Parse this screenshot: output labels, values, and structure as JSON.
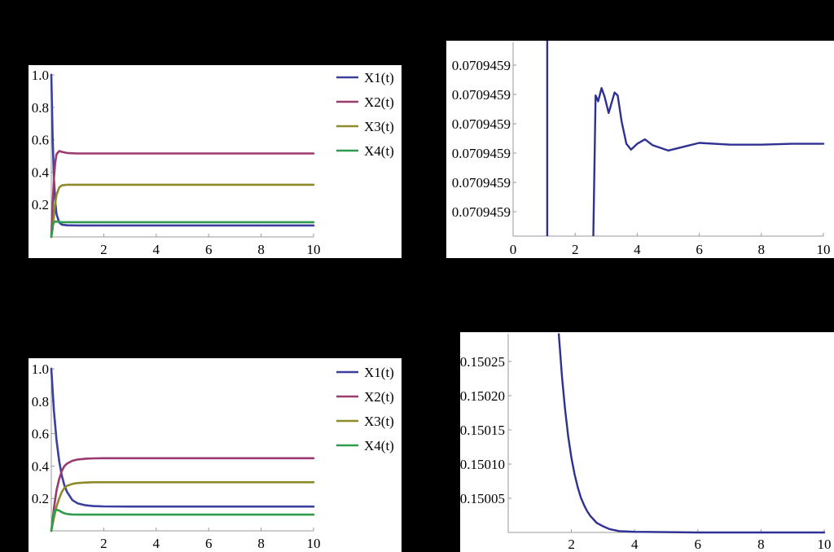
{
  "chart_data": [
    {
      "type": "line",
      "x_ticks": [
        "2",
        "4",
        "6",
        "8",
        "10"
      ],
      "y_ticks": [
        "1.0",
        "0.8",
        "0.6",
        "0.4",
        "0.2"
      ],
      "xlim": [
        0,
        10
      ],
      "ylim": [
        0,
        1.0
      ],
      "grid": false,
      "legend_position": "right",
      "series": [
        {
          "name": "X1(t)",
          "color": "#3b3f9e",
          "x": [
            0,
            0.05,
            0.1,
            0.15,
            0.2,
            0.3,
            0.4,
            0.6,
            1,
            2,
            4,
            6,
            8,
            10
          ],
          "y": [
            1.0,
            0.62,
            0.36,
            0.22,
            0.14,
            0.09,
            0.076,
            0.072,
            0.071,
            0.071,
            0.071,
            0.071,
            0.071,
            0.071
          ]
        },
        {
          "name": "X2(t)",
          "color": "#9b3a6e",
          "x": [
            0,
            0.05,
            0.1,
            0.15,
            0.2,
            0.3,
            0.4,
            0.6,
            1,
            2,
            4,
            6,
            8,
            10
          ],
          "y": [
            0,
            0.2,
            0.36,
            0.46,
            0.51,
            0.53,
            0.525,
            0.518,
            0.515,
            0.515,
            0.515,
            0.515,
            0.515,
            0.515
          ]
        },
        {
          "name": "X3(t)",
          "color": "#8e8a2a",
          "x": [
            0,
            0.05,
            0.1,
            0.15,
            0.2,
            0.3,
            0.4,
            0.6,
            1,
            2,
            4,
            6,
            8,
            10
          ],
          "y": [
            0,
            0.05,
            0.13,
            0.21,
            0.26,
            0.305,
            0.318,
            0.322,
            0.322,
            0.322,
            0.322,
            0.322,
            0.322,
            0.322
          ]
        },
        {
          "name": "X4(t)",
          "color": "#2e9c4e",
          "x": [
            0,
            0.05,
            0.1,
            0.15,
            0.2,
            0.3,
            0.4,
            0.6,
            1,
            2,
            4,
            6,
            8,
            10
          ],
          "y": [
            0,
            0.07,
            0.09,
            0.095,
            0.095,
            0.092,
            0.091,
            0.091,
            0.091,
            0.091,
            0.091,
            0.091,
            0.091,
            0.091
          ]
        }
      ]
    },
    {
      "type": "line",
      "x_ticks": [
        "0",
        "2",
        "4",
        "6",
        "8",
        "10"
      ],
      "y_ticks": [
        "0.0709459",
        "0.0709459",
        "0.0709459",
        "0.0709459",
        "0.0709459",
        "0.0709459"
      ],
      "xlim": [
        0,
        10
      ],
      "grid": false,
      "series": [
        {
          "color": "#2e3192",
          "x": [
            1.1,
            1.1,
            null,
            2.57,
            2.66,
            2.74,
            2.85,
            2.95,
            3.08,
            3.27,
            3.37,
            3.5,
            3.65,
            3.8,
            4.0,
            4.25,
            4.5,
            5.0,
            5.5,
            6.0,
            7.0,
            8.0,
            9.0,
            10.0
          ],
          "y": [
            7.2,
            -1.0,
            null,
            -1.0,
            4.8,
            4.6,
            5.05,
            4.75,
            4.2,
            4.9,
            4.8,
            3.9,
            3.15,
            2.95,
            3.15,
            3.3,
            3.1,
            2.92,
            3.05,
            3.18,
            3.12,
            3.12,
            3.15,
            3.15
          ]
        }
      ]
    },
    {
      "type": "line",
      "x_ticks": [
        "2",
        "4",
        "6",
        "8",
        "10"
      ],
      "y_ticks": [
        "1.0",
        "0.8",
        "0.6",
        "0.4",
        "0.2"
      ],
      "xlim": [
        0,
        10
      ],
      "ylim": [
        0,
        1.0
      ],
      "grid": false,
      "legend_position": "right",
      "series": [
        {
          "name": "X1(t)",
          "color": "#3b3f9e",
          "x": [
            0,
            0.1,
            0.2,
            0.3,
            0.4,
            0.5,
            0.6,
            0.8,
            1,
            1.3,
            1.6,
            2,
            3,
            5,
            10
          ],
          "y": [
            1.0,
            0.74,
            0.56,
            0.43,
            0.34,
            0.28,
            0.24,
            0.19,
            0.17,
            0.158,
            0.153,
            0.151,
            0.15,
            0.15,
            0.15
          ]
        },
        {
          "name": "X2(t)",
          "color": "#9b3a6e",
          "x": [
            0,
            0.1,
            0.2,
            0.3,
            0.4,
            0.5,
            0.6,
            0.8,
            1,
            1.3,
            1.6,
            2,
            3,
            5,
            10
          ],
          "y": [
            0,
            0.14,
            0.25,
            0.32,
            0.37,
            0.4,
            0.415,
            0.432,
            0.44,
            0.445,
            0.447,
            0.448,
            0.448,
            0.448,
            0.448
          ]
        },
        {
          "name": "X3(t)",
          "color": "#8e8a2a",
          "x": [
            0,
            0.1,
            0.2,
            0.3,
            0.4,
            0.5,
            0.6,
            0.8,
            1,
            1.3,
            1.6,
            2,
            3,
            5,
            10
          ],
          "y": [
            0,
            0.08,
            0.15,
            0.2,
            0.24,
            0.265,
            0.278,
            0.29,
            0.295,
            0.298,
            0.3,
            0.3,
            0.3,
            0.3,
            0.3
          ]
        },
        {
          "name": "X4(t)",
          "color": "#2e9c4e",
          "x": [
            0,
            0.1,
            0.2,
            0.3,
            0.4,
            0.5,
            0.6,
            0.8,
            1,
            1.3,
            1.6,
            2,
            3,
            5,
            10
          ],
          "y": [
            0,
            0.12,
            0.13,
            0.125,
            0.115,
            0.108,
            0.104,
            0.101,
            0.1,
            0.1,
            0.1,
            0.1,
            0.1,
            0.1,
            0.1
          ]
        }
      ]
    },
    {
      "type": "line",
      "x_ticks": [
        "2",
        "4",
        "6",
        "8",
        "10"
      ],
      "y_ticks": [
        "0.15025",
        "0.15020",
        "0.15015",
        "0.15010",
        "0.15005"
      ],
      "xlim": [
        0,
        10
      ],
      "ylim": [
        0.15,
        0.1503
      ],
      "grid": false,
      "series": [
        {
          "color": "#2e3192",
          "x": [
            1.6,
            1.7,
            1.8,
            1.9,
            2.0,
            2.1,
            2.2,
            2.3,
            2.4,
            2.5,
            2.6,
            2.7,
            2.8,
            3.0,
            3.2,
            3.5,
            4,
            6,
            8,
            10
          ],
          "y": [
            0.15029,
            0.150228,
            0.15018,
            0.15014,
            0.150109,
            0.150085,
            0.150066,
            0.150051,
            0.15004,
            0.150031,
            0.150024,
            0.150019,
            0.150014,
            0.150009,
            0.150005,
            0.150002,
            0.150001,
            0.15,
            0.15,
            0.15
          ]
        }
      ]
    }
  ]
}
